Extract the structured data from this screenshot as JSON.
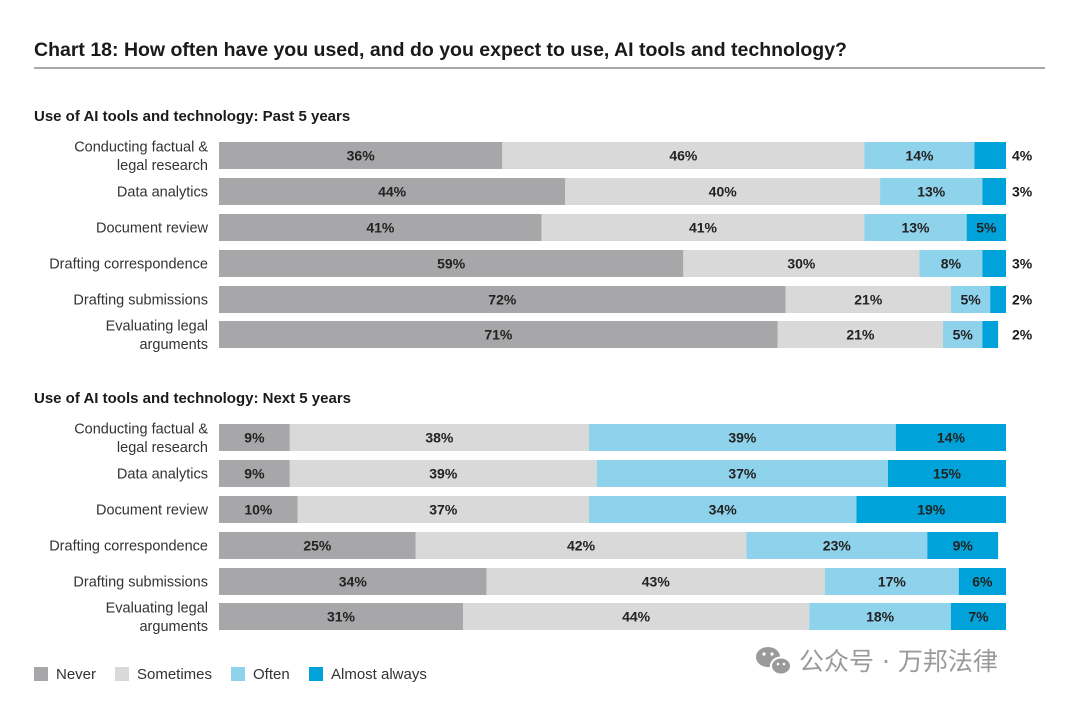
{
  "chart_title": "Chart 18: How often have you used, and do you expect to use, AI tools and technology?",
  "watermark_text": "公众号 · 万邦法律",
  "series_colors": {
    "Never": "#a7a7a9",
    "Sometimes": "#d9d9d9",
    "Often": "#8fd2ec",
    "Almost always": "#00a3d9"
  },
  "legend": [
    "Never",
    "Sometimes",
    "Often",
    "Almost always"
  ],
  "chart_data": [
    {
      "type": "bar",
      "orientation": "horizontal",
      "stacked": true,
      "title": "Use of AI tools and technology: Past 5 years",
      "categories": [
        [
          "Conducting factual &",
          "legal research"
        ],
        [
          "Data analytics"
        ],
        [
          "Document review"
        ],
        [
          "Drafting correspondence"
        ],
        [
          "Drafting submissions"
        ],
        [
          "Evaluating legal",
          "arguments"
        ]
      ],
      "series": [
        {
          "name": "Never",
          "values": [
            36,
            44,
            41,
            59,
            72,
            71
          ]
        },
        {
          "name": "Sometimes",
          "values": [
            46,
            40,
            41,
            30,
            21,
            21
          ]
        },
        {
          "name": "Often",
          "values": [
            14,
            13,
            13,
            8,
            5,
            5
          ]
        },
        {
          "name": "Almost always",
          "values": [
            4,
            3,
            5,
            3,
            2,
            2
          ]
        }
      ],
      "xlim": [
        0,
        100
      ],
      "unit": "%"
    },
    {
      "type": "bar",
      "orientation": "horizontal",
      "stacked": true,
      "title": "Use of AI tools and technology: Next 5 years",
      "categories": [
        [
          "Conducting factual &",
          "legal research"
        ],
        [
          "Data analytics"
        ],
        [
          "Document review"
        ],
        [
          "Drafting correspondence"
        ],
        [
          "Drafting submissions"
        ],
        [
          "Evaluating legal",
          "arguments"
        ]
      ],
      "series": [
        {
          "name": "Never",
          "values": [
            9,
            9,
            10,
            25,
            34,
            31
          ]
        },
        {
          "name": "Sometimes",
          "values": [
            38,
            39,
            37,
            42,
            43,
            44
          ]
        },
        {
          "name": "Often",
          "values": [
            39,
            37,
            34,
            23,
            17,
            18
          ]
        },
        {
          "name": "Almost always",
          "values": [
            14,
            15,
            19,
            9,
            6,
            7
          ]
        }
      ],
      "xlim": [
        0,
        100
      ],
      "unit": "%"
    }
  ]
}
